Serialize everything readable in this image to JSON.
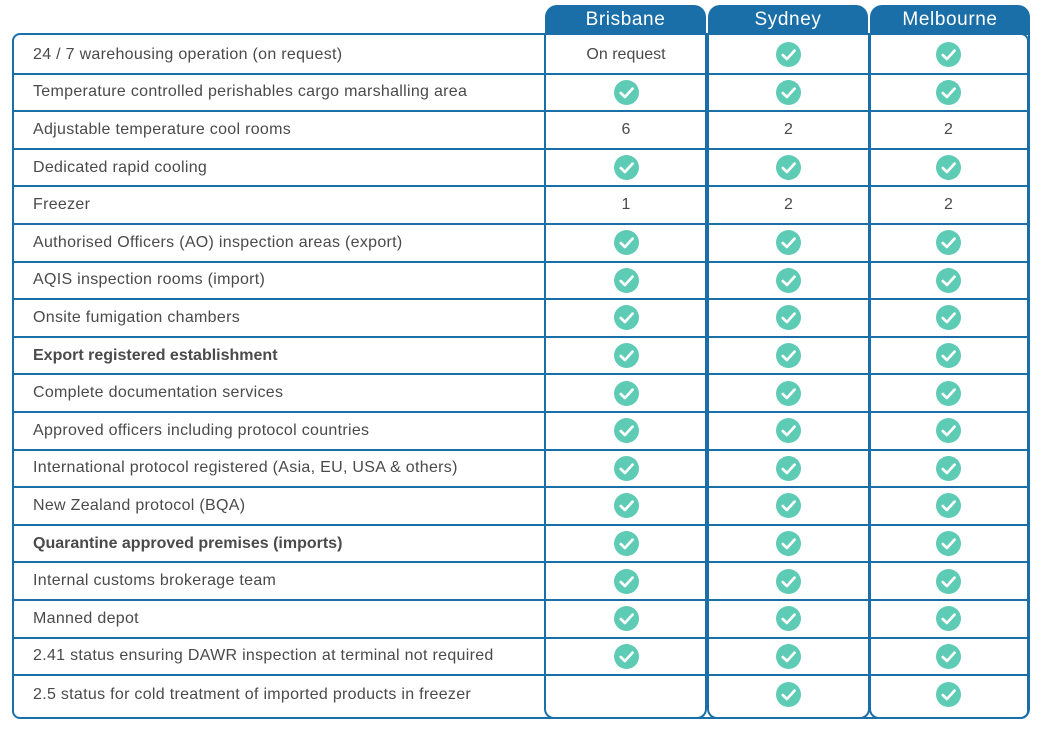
{
  "columns": [
    "Brisbane",
    "Sydney",
    "Melbourne"
  ],
  "colors": {
    "accent": "#1b6fa8",
    "check": "#5ecbb5",
    "text": "#4a4a4a"
  },
  "rows": [
    {
      "label": "24 / 7 warehousing operation (on request)",
      "bold": false,
      "values": [
        "On request",
        "check",
        "check"
      ]
    },
    {
      "label": "Temperature controlled perishables cargo marshalling area",
      "bold": false,
      "values": [
        "check",
        "check",
        "check"
      ]
    },
    {
      "label": "Adjustable temperature cool rooms",
      "bold": false,
      "values": [
        "6",
        "2",
        "2"
      ]
    },
    {
      "label": "Dedicated rapid cooling",
      "bold": false,
      "values": [
        "check",
        "check",
        "check"
      ]
    },
    {
      "label": "Freezer",
      "bold": false,
      "values": [
        "1",
        "2",
        "2"
      ]
    },
    {
      "label": "Authorised Officers (AO) inspection areas (export)",
      "bold": false,
      "values": [
        "check",
        "check",
        "check"
      ]
    },
    {
      "label": "AQIS inspection rooms (import)",
      "bold": false,
      "values": [
        "check",
        "check",
        "check"
      ]
    },
    {
      "label": "Onsite fumigation chambers",
      "bold": false,
      "values": [
        "check",
        "check",
        "check"
      ]
    },
    {
      "label": "Export registered establishment",
      "bold": true,
      "values": [
        "check",
        "check",
        "check"
      ]
    },
    {
      "label": "Complete documentation services",
      "bold": false,
      "values": [
        "check",
        "check",
        "check"
      ]
    },
    {
      "label": "Approved officers including protocol countries",
      "bold": false,
      "values": [
        "check",
        "check",
        "check"
      ]
    },
    {
      "label": "International protocol registered (Asia, EU, USA & others)",
      "bold": false,
      "values": [
        "check",
        "check",
        "check"
      ]
    },
    {
      "label": "New Zealand protocol (BQA)",
      "bold": false,
      "values": [
        "check",
        "check",
        "check"
      ]
    },
    {
      "label": "Quarantine approved premises (imports)",
      "bold": true,
      "values": [
        "check",
        "check",
        "check"
      ]
    },
    {
      "label": "Internal customs brokerage team",
      "bold": false,
      "values": [
        "check",
        "check",
        "check"
      ]
    },
    {
      "label": "Manned depot",
      "bold": false,
      "values": [
        "check",
        "check",
        "check"
      ]
    },
    {
      "label": "2.41 status ensuring DAWR inspection at terminal not required",
      "bold": false,
      "values": [
        "check",
        "check",
        "check"
      ]
    },
    {
      "label": "2.5 status for cold treatment of imported products in freezer",
      "bold": false,
      "values": [
        "",
        "check",
        "check"
      ]
    }
  ]
}
